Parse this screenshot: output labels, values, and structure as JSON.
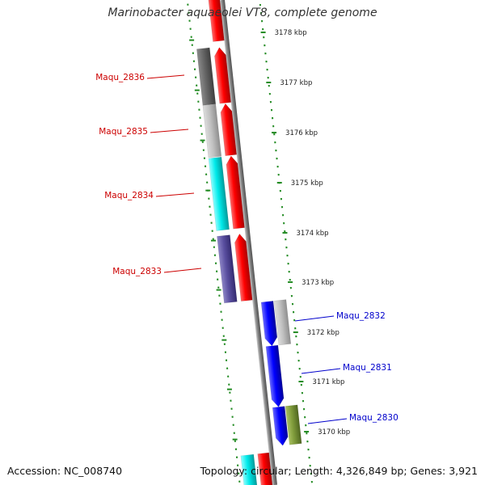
{
  "title": "Marinobacter aquaeolei VT8, complete genome",
  "footer": {
    "accession": "Accession: NC_008740",
    "topology": "Topology: circular; Length: 4,326,849 bp; Genes: 3,921"
  },
  "ticks": [
    "3178 kbp",
    "3177 kbp",
    "3176 kbp",
    "3175 kbp",
    "3174 kbp",
    "3173 kbp",
    "3172 kbp",
    "3171 kbp",
    "3170 kbp"
  ],
  "labeled_genes": [
    {
      "name": "Maqu_2836",
      "strand": "left",
      "color": "#cc0000"
    },
    {
      "name": "Maqu_2835",
      "strand": "left",
      "color": "#cc0000"
    },
    {
      "name": "Maqu_2834",
      "strand": "left",
      "color": "#cc0000"
    },
    {
      "name": "Maqu_2833",
      "strand": "left",
      "color": "#cc0000"
    },
    {
      "name": "Maqu_2832",
      "strand": "right",
      "color": "#0000cc"
    },
    {
      "name": "Maqu_2831",
      "strand": "right",
      "color": "#0000cc"
    },
    {
      "name": "Maqu_2830",
      "strand": "right",
      "color": "#0000cc"
    }
  ],
  "colors": {
    "forward_feature": "#ff0000",
    "reverse_feature": "#0000ff",
    "backbone": "#808080",
    "tick_marks": "#228b22"
  }
}
